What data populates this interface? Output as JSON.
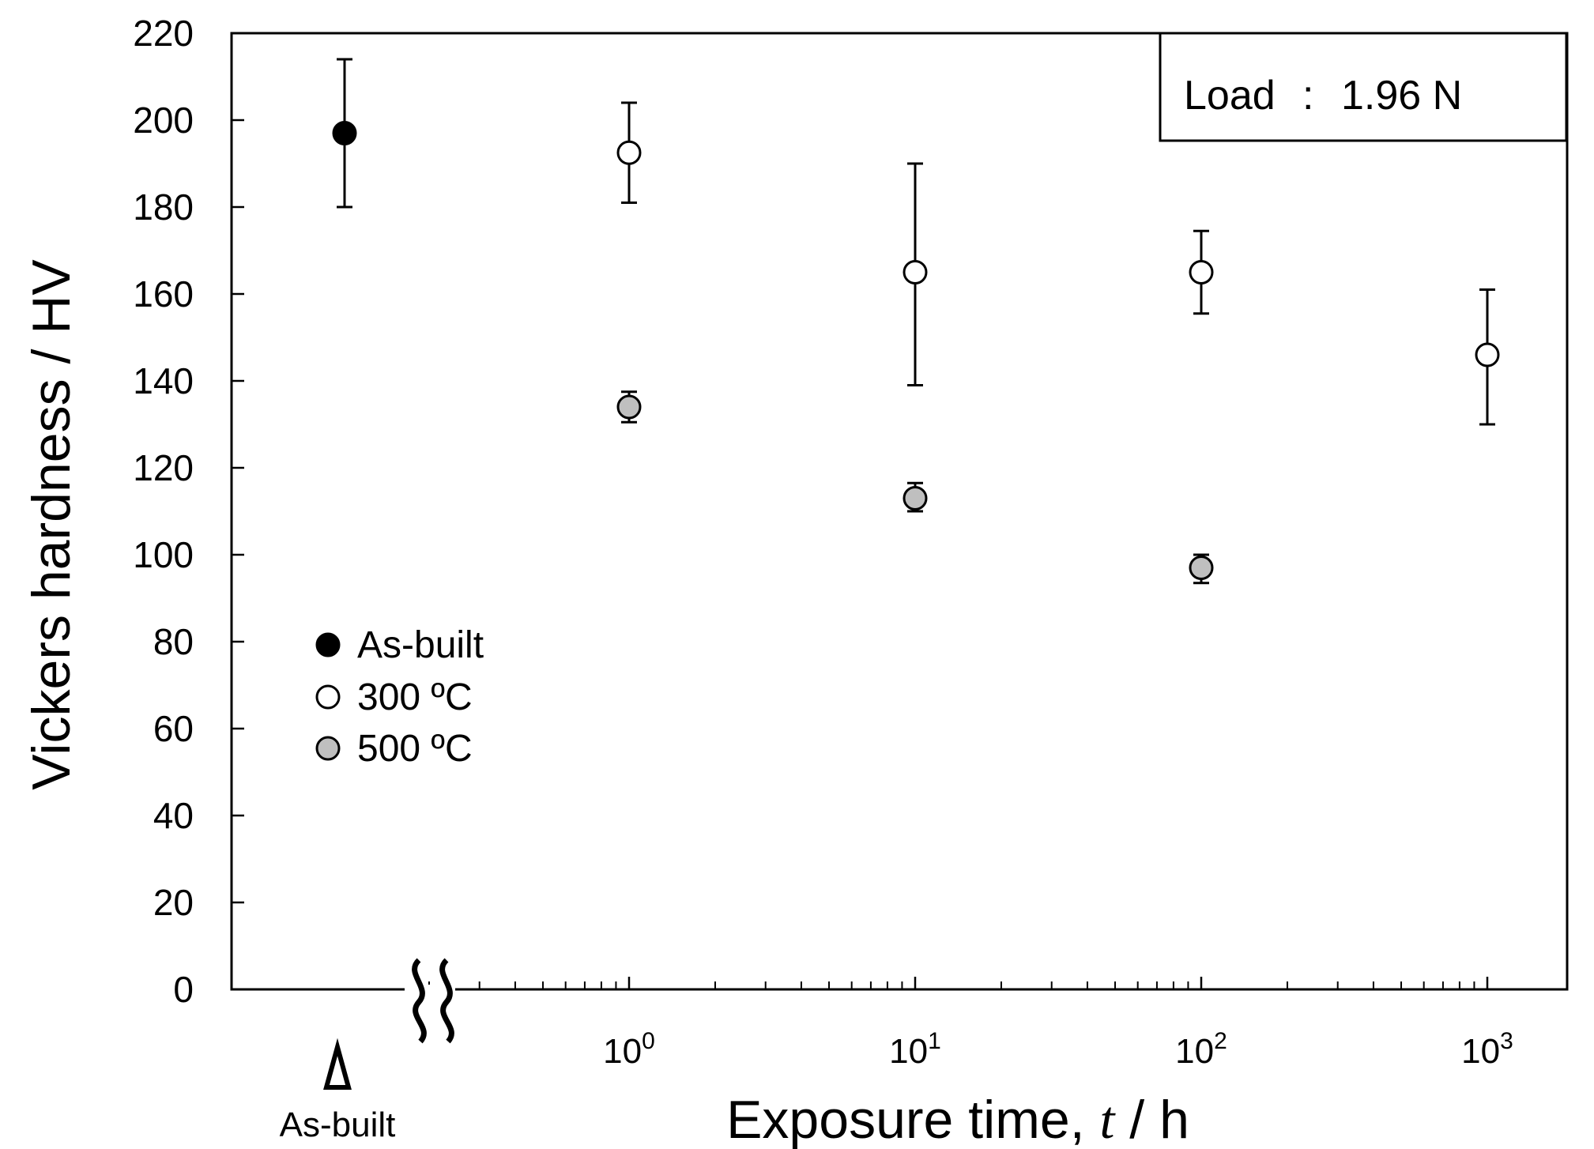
{
  "chart_data": {
    "type": "scatter",
    "xlabel": "Exposure time, ",
    "xlabel_var": "t",
    "xlabel_unit": " / h",
    "ylabel": "Vickers hardness / HV",
    "ylim": [
      0,
      220
    ],
    "yticks": [
      0,
      20,
      40,
      60,
      80,
      100,
      120,
      140,
      160,
      180,
      200,
      220
    ],
    "xscale": "log",
    "xlim": [
      0.2,
      3000
    ],
    "xticks": [
      {
        "value": 1,
        "base": "10",
        "exp": "0"
      },
      {
        "value": 10,
        "base": "10",
        "exp": "1"
      },
      {
        "value": 100,
        "base": "10",
        "exp": "2"
      },
      {
        "value": 1000,
        "base": "10",
        "exp": "3"
      }
    ],
    "axis_break": true,
    "asbuilt_label": "As-built",
    "annotation": {
      "label": "Load",
      "sep": ":",
      "value": "1.96 N"
    },
    "legend_position": "middle-left",
    "series": [
      {
        "name": "As-built",
        "marker": "filled",
        "color": "#000000",
        "points": [
          {
            "x": "As-built",
            "y": 197,
            "yerr_low": 180,
            "yerr_high": 214
          }
        ]
      },
      {
        "name": "300 ºC",
        "marker": "open",
        "color": "#ffffff",
        "points": [
          {
            "x": 1,
            "y": 192.5,
            "yerr_low": 181,
            "yerr_high": 204
          },
          {
            "x": 10,
            "y": 165,
            "yerr_low": 139,
            "yerr_high": 190
          },
          {
            "x": 100,
            "y": 165,
            "yerr_low": 155.5,
            "yerr_high": 174.5
          },
          {
            "x": 1000,
            "y": 146,
            "yerr_low": 130,
            "yerr_high": 161
          }
        ]
      },
      {
        "name": "500 ºC",
        "marker": "gray",
        "color": "#bfbfbf",
        "points": [
          {
            "x": 1,
            "y": 134,
            "yerr_low": 130.5,
            "yerr_high": 137.5
          },
          {
            "x": 10,
            "y": 113,
            "yerr_low": 110,
            "yerr_high": 116.5
          },
          {
            "x": 100,
            "y": 97,
            "yerr_low": 93.5,
            "yerr_high": 100
          }
        ]
      }
    ]
  }
}
